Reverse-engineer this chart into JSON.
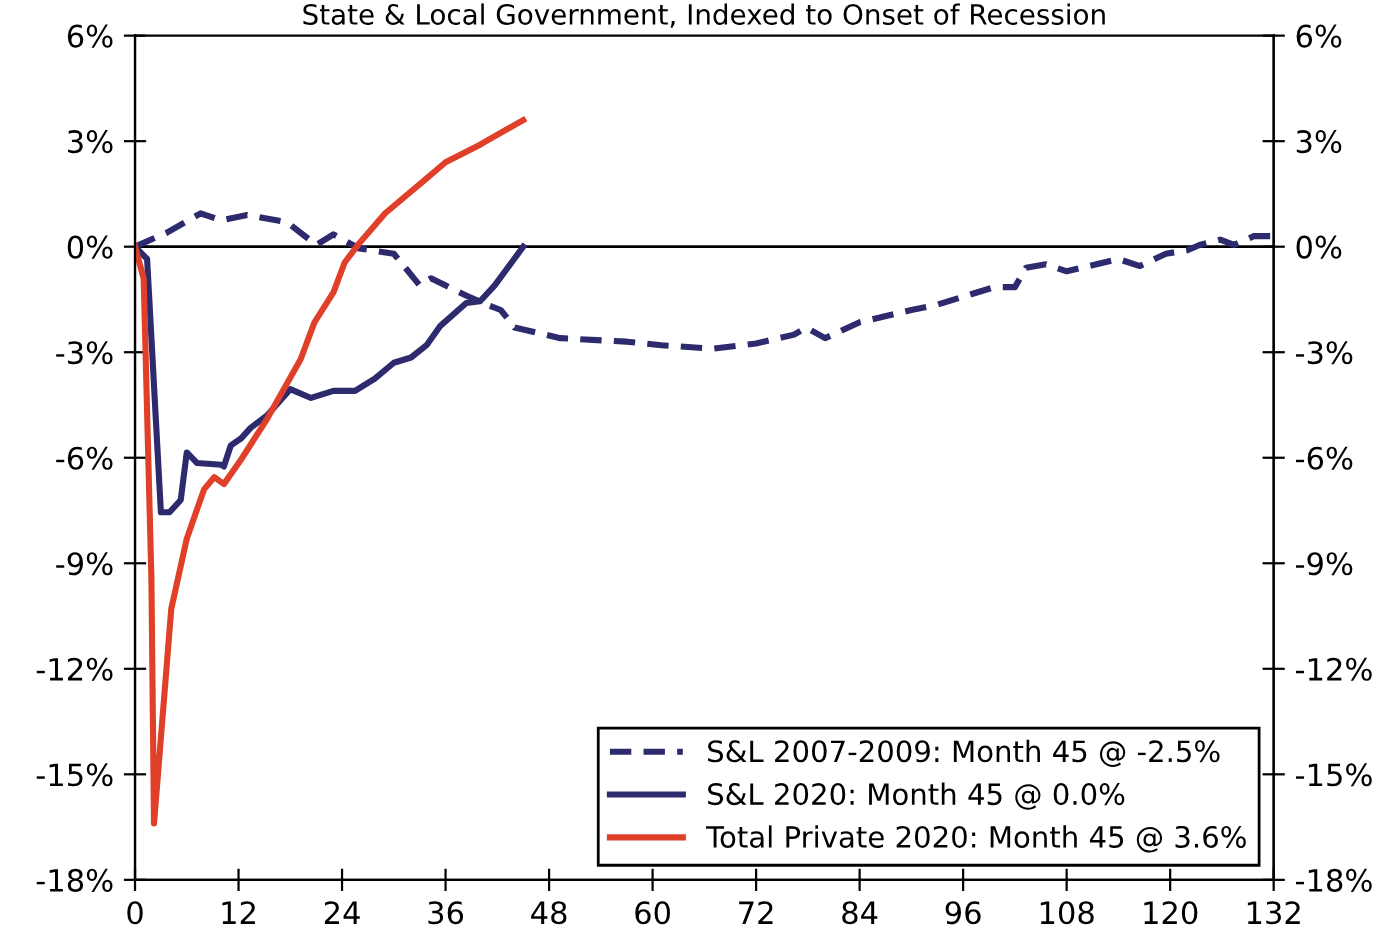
{
  "chart_data": {
    "type": "line",
    "title": "State & Local Government, Indexed to Onset of Recession",
    "xlim": [
      0,
      132
    ],
    "xticks": [
      0,
      12,
      24,
      36,
      48,
      60,
      72,
      84,
      96,
      108,
      120,
      132
    ],
    "ylim": [
      -18,
      6
    ],
    "yticks": [
      {
        "value": -18,
        "label": "-18%"
      },
      {
        "value": -15,
        "label": "-15%"
      },
      {
        "value": -12,
        "label": "-12%"
      },
      {
        "value": -9,
        "label": "-9%"
      },
      {
        "value": -6,
        "label": "-6%"
      },
      {
        "value": -3,
        "label": "-3%"
      },
      {
        "value": 0,
        "label": "0%"
      },
      {
        "value": 3,
        "label": "3%"
      },
      {
        "value": 6,
        "label": "6%"
      }
    ],
    "y2lim": [
      -18,
      6
    ],
    "y2ticks": [
      {
        "value": -18,
        "label": "-18%"
      },
      {
        "value": -15,
        "label": "-15%"
      },
      {
        "value": -12,
        "label": "-12%"
      },
      {
        "value": -9,
        "label": "-9%"
      },
      {
        "value": -6,
        "label": "-6%"
      },
      {
        "value": -3,
        "label": "-3%"
      },
      {
        "value": 0,
        "label": "0%"
      },
      {
        "value": 3,
        "label": "3%"
      },
      {
        "value": 6,
        "label": "6%"
      }
    ],
    "grid": false,
    "legend": "bottom right",
    "marker": "none",
    "ref_lines": [
      {
        "axis": "y",
        "value": 0,
        "color": "#000000"
      }
    ],
    "series": [
      {
        "name": "S&L 2007-2009: Month 45 @ -2.5%",
        "color": "#2e2a6e",
        "line_style": "dashed",
        "x": [
          0,
          3.7,
          7.6,
          10,
          13,
          17.6,
          21,
          23,
          26,
          30,
          33,
          34.3,
          38.5,
          40.8,
          42.4,
          44,
          49.3,
          57,
          61,
          67,
          72,
          76.4,
          77.8,
          80,
          84,
          90,
          93,
          99.6,
          102,
          103.3,
          105.6,
          108,
          114,
          116.5,
          119.5,
          122,
          123.4,
          125.8,
          127.4,
          129.7,
          132
        ],
        "values": [
          0,
          0.4,
          0.95,
          0.75,
          0.9,
          0.7,
          0.05,
          0.35,
          -0.05,
          -0.2,
          -1.1,
          -0.9,
          -1.4,
          -1.65,
          -1.8,
          -2.3,
          -2.6,
          -2.7,
          -2.8,
          -2.9,
          -2.75,
          -2.5,
          -2.3,
          -2.6,
          -2.15,
          -1.8,
          -1.65,
          -1.15,
          -1.15,
          -0.6,
          -0.5,
          -0.7,
          -0.35,
          -0.55,
          -0.2,
          -0.1,
          0.05,
          0.2,
          0.05,
          0.3,
          0.3
        ]
      },
      {
        "name": "S&L 2020: Month 45 @ 0.0%",
        "color": "#2e2a6e",
        "line_style": "solid",
        "x": [
          0,
          1.4,
          3,
          4,
          5.3,
          6,
          7.2,
          10,
          10.3,
          11.1,
          12.3,
          13.4,
          15.3,
          18,
          20.4,
          23,
          25.5,
          27.8,
          30,
          32,
          33.8,
          35.4,
          38.4,
          40,
          41.7,
          45
        ],
        "values": [
          0,
          -0.35,
          -7.55,
          -7.55,
          -7.2,
          -5.85,
          -6.15,
          -6.2,
          -6.25,
          -5.65,
          -5.45,
          -5.15,
          -4.8,
          -4.05,
          -4.3,
          -4.1,
          -4.1,
          -3.75,
          -3.3,
          -3.15,
          -2.8,
          -2.25,
          -1.6,
          -1.55,
          -1.1,
          0
        ]
      },
      {
        "name": "Total Private 2020: Month 45 @ 3.6%",
        "color": "#e0402a",
        "line_style": "solid",
        "x": [
          0,
          1,
          1.9,
          2.2,
          4.2,
          6,
          8,
          9.2,
          10.3,
          12.3,
          15.3,
          19.2,
          20.8,
          23,
          24.3,
          26,
          29,
          33.6,
          36,
          40,
          45
        ],
        "values": [
          0,
          -0.9,
          -9.45,
          -16.4,
          -10.3,
          -8.3,
          -6.9,
          -6.55,
          -6.75,
          -6.05,
          -4.9,
          -3.2,
          -2.15,
          -1.3,
          -0.45,
          0.1,
          0.95,
          1.9,
          2.4,
          2.9,
          3.6
        ]
      }
    ]
  }
}
